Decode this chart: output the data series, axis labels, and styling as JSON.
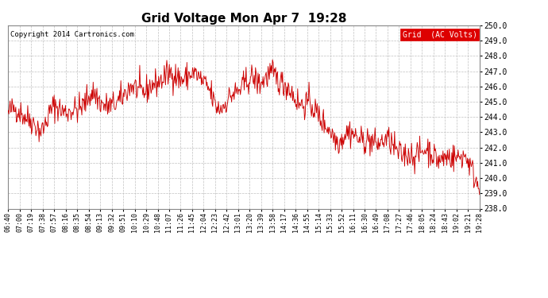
{
  "title": "Grid Voltage Mon Apr 7  19:28",
  "copyright": "Copyright 2014 Cartronics.com",
  "legend_label": "Grid  (AC Volts)",
  "line_color": "#cc0000",
  "background_color": "#ffffff",
  "plot_background": "#ffffff",
  "grid_color": "#c0c0c0",
  "ylim": [
    238.0,
    250.0
  ],
  "yticks": [
    238.0,
    239.0,
    240.0,
    241.0,
    242.0,
    243.0,
    244.0,
    245.0,
    246.0,
    247.0,
    248.0,
    249.0,
    250.0
  ],
  "xtick_labels": [
    "06:40",
    "07:00",
    "07:19",
    "07:38",
    "07:57",
    "08:16",
    "08:35",
    "08:54",
    "09:13",
    "09:32",
    "09:51",
    "10:10",
    "10:29",
    "10:48",
    "11:07",
    "11:26",
    "11:45",
    "12:04",
    "12:23",
    "12:42",
    "13:01",
    "13:20",
    "13:39",
    "13:58",
    "14:17",
    "14:36",
    "14:55",
    "15:14",
    "15:33",
    "15:52",
    "16:11",
    "16:30",
    "16:49",
    "17:08",
    "17:27",
    "17:46",
    "18:05",
    "18:24",
    "18:43",
    "19:02",
    "19:21",
    "19:28"
  ],
  "seed": 42,
  "n_points": 750
}
